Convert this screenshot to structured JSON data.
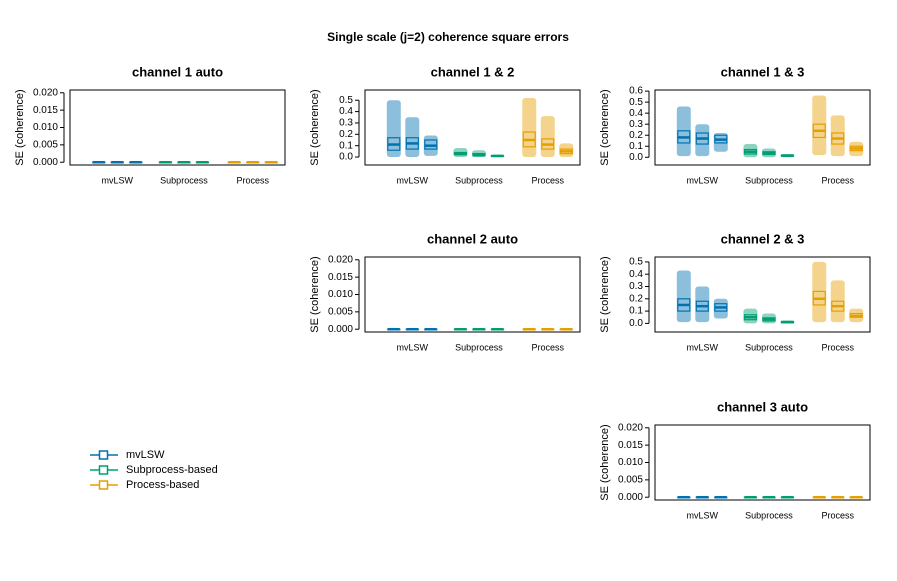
{
  "title": "Single scale (j=2) coherence square errors",
  "legend": {
    "names": [
      "mvLSW",
      "Subprocess-based",
      "Process-based"
    ],
    "colors": [
      "#0072B2",
      "#009E73",
      "#E69F00"
    ]
  },
  "chart_data": [
    {
      "type": "box",
      "title": "channel 1 auto",
      "ylabel": "SE (coherence)",
      "categories": [
        "mvLSW",
        "Subprocess",
        "Process"
      ],
      "ylim": [
        -0.0008,
        0.0208
      ],
      "yticks": [
        {
          "value": 0,
          "label": "0.000"
        },
        {
          "value": 0.005,
          "label": "0.005"
        },
        {
          "value": 0.01,
          "label": "0.010"
        },
        {
          "value": 0.015,
          "label": "0.015"
        },
        {
          "value": 0.02,
          "label": "0.020"
        }
      ],
      "groups": [
        {
          "color": "#0072B2",
          "boxes": [
            {
              "min": 0,
              "q1": 0,
              "median": 0,
              "q3": 0,
              "max": 0.0002
            },
            {
              "min": 0,
              "q1": 0,
              "median": 0,
              "q3": 0,
              "max": 0.0002
            },
            {
              "min": 0,
              "q1": 0,
              "median": 0,
              "q3": 0,
              "max": 0.0002
            }
          ]
        },
        {
          "color": "#009E73",
          "boxes": [
            {
              "min": 0,
              "q1": 0,
              "median": 0,
              "q3": 0,
              "max": 0.0002
            },
            {
              "min": 0,
              "q1": 0,
              "median": 0,
              "q3": 0,
              "max": 0.0002
            },
            {
              "min": 0,
              "q1": 0,
              "median": 0,
              "q3": 0,
              "max": 0.0002
            }
          ]
        },
        {
          "color": "#E69F00",
          "boxes": [
            {
              "min": 0,
              "q1": 0,
              "median": 0,
              "q3": 0,
              "max": 0.0002
            },
            {
              "min": 0,
              "q1": 0,
              "median": 0,
              "q3": 0,
              "max": 0.0002
            },
            {
              "min": 0,
              "q1": 0,
              "median": 0,
              "q3": 0,
              "max": 0.0002
            }
          ]
        }
      ]
    },
    {
      "type": "box",
      "title": "channel 1 & 2",
      "ylabel": "SE (coherence)",
      "categories": [
        "mvLSW",
        "Subprocess",
        "Process"
      ],
      "ylim": [
        -0.07,
        0.59
      ],
      "yticks": [
        {
          "value": 0,
          "label": "0.0"
        },
        0.1,
        0.2,
        0.3,
        0.4,
        0.5
      ],
      "groups": [
        {
          "color": "#0072B2",
          "boxes": [
            {
              "min": 0,
              "q1": 0.06,
              "median": 0.11,
              "q3": 0.17,
              "max": 0.5
            },
            {
              "min": 0,
              "q1": 0.07,
              "median": 0.12,
              "q3": 0.17,
              "max": 0.35
            },
            {
              "min": 0.01,
              "q1": 0.07,
              "median": 0.1,
              "q3": 0.15,
              "max": 0.19
            }
          ]
        },
        {
          "color": "#009E73",
          "boxes": [
            {
              "min": 0,
              "q1": 0.02,
              "median": 0.03,
              "q3": 0.04,
              "max": 0.08
            },
            {
              "min": 0,
              "q1": 0.01,
              "median": 0.02,
              "q3": 0.03,
              "max": 0.06
            },
            {
              "min": 0,
              "q1": 0.005,
              "median": 0.01,
              "q3": 0.012,
              "max": 0.02
            }
          ]
        },
        {
          "color": "#E69F00",
          "boxes": [
            {
              "min": 0,
              "q1": 0.09,
              "median": 0.15,
              "q3": 0.22,
              "max": 0.52
            },
            {
              "min": 0,
              "q1": 0.07,
              "median": 0.11,
              "q3": 0.16,
              "max": 0.36
            },
            {
              "min": 0,
              "q1": 0.03,
              "median": 0.05,
              "q3": 0.07,
              "max": 0.12
            }
          ]
        }
      ]
    },
    {
      "type": "box",
      "title": "channel 1 & 3",
      "ylabel": "SE (coherence)",
      "categories": [
        "mvLSW",
        "Subprocess",
        "Process"
      ],
      "ylim": [
        -0.07,
        0.61
      ],
      "yticks": [
        {
          "value": 0,
          "label": "0.0"
        },
        0.1,
        0.2,
        0.3,
        0.4,
        0.5,
        0.6
      ],
      "groups": [
        {
          "color": "#0072B2",
          "boxes": [
            {
              "min": 0.01,
              "q1": 0.13,
              "median": 0.18,
              "q3": 0.24,
              "max": 0.46
            },
            {
              "min": 0.01,
              "q1": 0.12,
              "median": 0.17,
              "q3": 0.22,
              "max": 0.3
            },
            {
              "min": 0.05,
              "q1": 0.13,
              "median": 0.16,
              "q3": 0.2,
              "max": 0.22
            }
          ]
        },
        {
          "color": "#009E73",
          "boxes": [
            {
              "min": 0,
              "q1": 0.03,
              "median": 0.05,
              "q3": 0.07,
              "max": 0.12
            },
            {
              "min": 0,
              "q1": 0.025,
              "median": 0.04,
              "q3": 0.05,
              "max": 0.08
            },
            {
              "min": 0,
              "q1": 0.01,
              "median": 0.015,
              "q3": 0.02,
              "max": 0.03
            }
          ]
        },
        {
          "color": "#E69F00",
          "boxes": [
            {
              "min": 0.02,
              "q1": 0.18,
              "median": 0.24,
              "q3": 0.3,
              "max": 0.56
            },
            {
              "min": 0.01,
              "q1": 0.12,
              "median": 0.17,
              "q3": 0.22,
              "max": 0.38
            },
            {
              "min": 0.01,
              "q1": 0.06,
              "median": 0.08,
              "q3": 0.1,
              "max": 0.14
            }
          ]
        }
      ]
    },
    {
      "type": "box",
      "title": "channel 2 auto",
      "ylabel": "SE (coherence)",
      "categories": [
        "mvLSW",
        "Subprocess",
        "Process"
      ],
      "ylim": [
        -0.0008,
        0.0208
      ],
      "yticks": [
        {
          "value": 0,
          "label": "0.000"
        },
        {
          "value": 0.005,
          "label": "0.005"
        },
        {
          "value": 0.01,
          "label": "0.010"
        },
        {
          "value": 0.015,
          "label": "0.015"
        },
        {
          "value": 0.02,
          "label": "0.020"
        }
      ],
      "groups": [
        {
          "color": "#0072B2",
          "boxes": [
            {
              "min": 0,
              "q1": 0,
              "median": 0,
              "q3": 0,
              "max": 0.0002
            },
            {
              "min": 0,
              "q1": 0,
              "median": 0,
              "q3": 0,
              "max": 0.0002
            },
            {
              "min": 0,
              "q1": 0,
              "median": 0,
              "q3": 0,
              "max": 0.0002
            }
          ]
        },
        {
          "color": "#009E73",
          "boxes": [
            {
              "min": 0,
              "q1": 0,
              "median": 0,
              "q3": 0,
              "max": 0.0002
            },
            {
              "min": 0,
              "q1": 0,
              "median": 0,
              "q3": 0,
              "max": 0.0002
            },
            {
              "min": 0,
              "q1": 0,
              "median": 0,
              "q3": 0,
              "max": 0.0002
            }
          ]
        },
        {
          "color": "#E69F00",
          "boxes": [
            {
              "min": 0,
              "q1": 0,
              "median": 0,
              "q3": 0,
              "max": 0.0002
            },
            {
              "min": 0,
              "q1": 0,
              "median": 0,
              "q3": 0,
              "max": 0.0002
            },
            {
              "min": 0,
              "q1": 0,
              "median": 0,
              "q3": 0,
              "max": 0.0002
            }
          ]
        }
      ]
    },
    {
      "type": "box",
      "title": "channel 2 & 3",
      "ylabel": "SE (coherence)",
      "categories": [
        "mvLSW",
        "Subprocess",
        "Process"
      ],
      "ylim": [
        -0.07,
        0.54
      ],
      "yticks": [
        {
          "value": 0,
          "label": "0.0"
        },
        0.1,
        0.2,
        0.3,
        0.4,
        0.5
      ],
      "groups": [
        {
          "color": "#0072B2",
          "boxes": [
            {
              "min": 0.01,
              "q1": 0.1,
              "median": 0.15,
              "q3": 0.2,
              "max": 0.43
            },
            {
              "min": 0.01,
              "q1": 0.1,
              "median": 0.14,
              "q3": 0.18,
              "max": 0.3
            },
            {
              "min": 0.04,
              "q1": 0.1,
              "median": 0.13,
              "q3": 0.16,
              "max": 0.2
            }
          ]
        },
        {
          "color": "#009E73",
          "boxes": [
            {
              "min": 0,
              "q1": 0.03,
              "median": 0.05,
              "q3": 0.07,
              "max": 0.12
            },
            {
              "min": 0,
              "q1": 0.02,
              "median": 0.035,
              "q3": 0.045,
              "max": 0.08
            },
            {
              "min": 0,
              "q1": 0.005,
              "median": 0.01,
              "q3": 0.015,
              "max": 0.025
            }
          ]
        },
        {
          "color": "#E69F00",
          "boxes": [
            {
              "min": 0.01,
              "q1": 0.15,
              "median": 0.2,
              "q3": 0.26,
              "max": 0.5
            },
            {
              "min": 0.01,
              "q1": 0.1,
              "median": 0.14,
              "q3": 0.18,
              "max": 0.35
            },
            {
              "min": 0.01,
              "q1": 0.05,
              "median": 0.06,
              "q3": 0.08,
              "max": 0.12
            }
          ]
        }
      ]
    },
    {
      "type": "box",
      "title": "channel 3 auto",
      "ylabel": "SE (coherence)",
      "categories": [
        "mvLSW",
        "Subprocess",
        "Process"
      ],
      "ylim": [
        -0.0008,
        0.0208
      ],
      "yticks": [
        {
          "value": 0,
          "label": "0.000"
        },
        {
          "value": 0.005,
          "label": "0.005"
        },
        {
          "value": 0.01,
          "label": "0.010"
        },
        {
          "value": 0.015,
          "label": "0.015"
        },
        {
          "value": 0.02,
          "label": "0.020"
        }
      ],
      "groups": [
        {
          "color": "#0072B2",
          "boxes": [
            {
              "min": 0,
              "q1": 0,
              "median": 0,
              "q3": 0,
              "max": 0.0002
            },
            {
              "min": 0,
              "q1": 0,
              "median": 0,
              "q3": 0,
              "max": 0.0002
            },
            {
              "min": 0,
              "q1": 0,
              "median": 0,
              "q3": 0,
              "max": 0.0002
            }
          ]
        },
        {
          "color": "#009E73",
          "boxes": [
            {
              "min": 0,
              "q1": 0,
              "median": 0,
              "q3": 0,
              "max": 0.0002
            },
            {
              "min": 0,
              "q1": 0,
              "median": 0,
              "q3": 0,
              "max": 0.0002
            },
            {
              "min": 0,
              "q1": 0,
              "median": 0,
              "q3": 0,
              "max": 0.0002
            }
          ]
        },
        {
          "color": "#E69F00",
          "boxes": [
            {
              "min": 0,
              "q1": 0,
              "median": 0,
              "q3": 0,
              "max": 0.0002
            },
            {
              "min": 0,
              "q1": 0,
              "median": 0,
              "q3": 0,
              "max": 0.0002
            },
            {
              "min": 0,
              "q1": 0,
              "median": 0,
              "q3": 0,
              "max": 0.0002
            }
          ]
        }
      ]
    }
  ]
}
